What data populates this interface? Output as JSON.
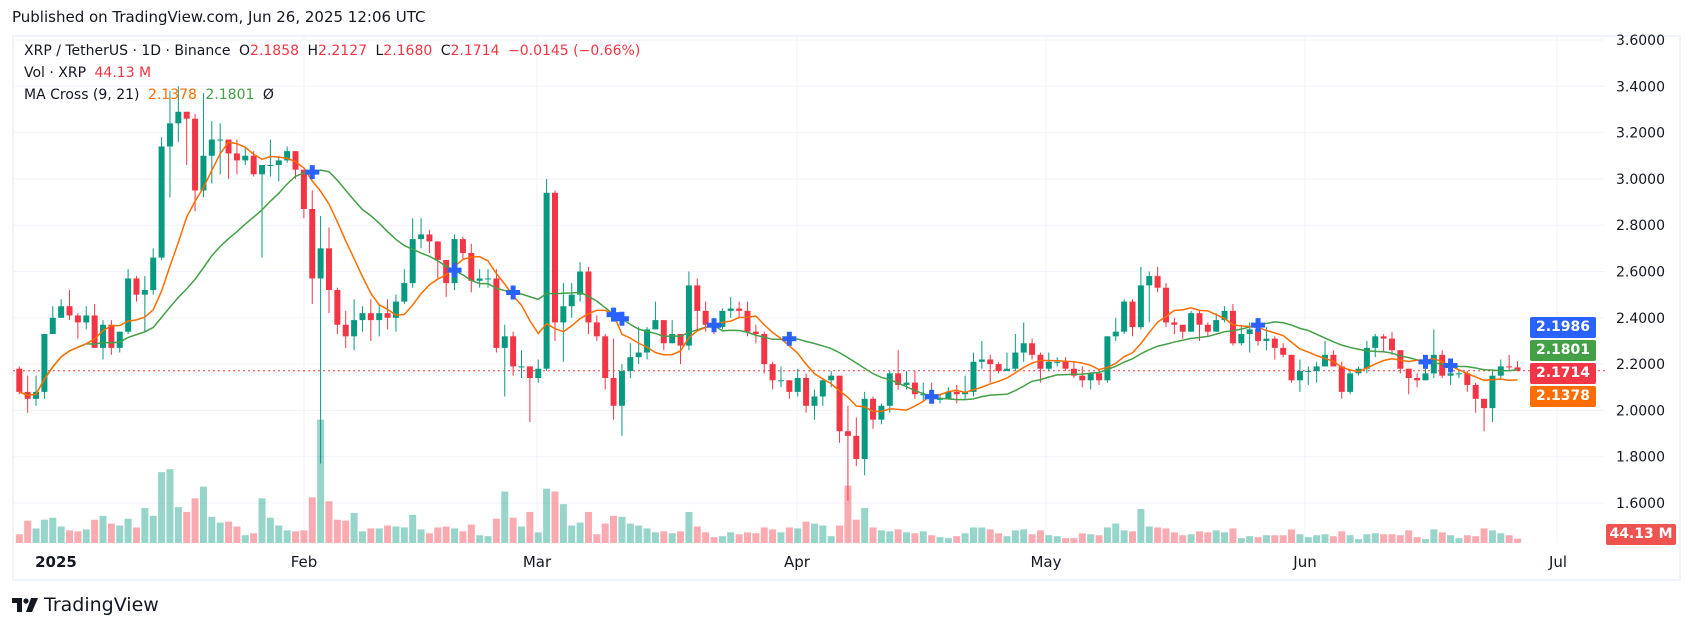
{
  "published": "Published on TradingView.com, Jun 26, 2025 12:06 UTC",
  "legend": {
    "symbol": "XRP / TetherUS · 1D · Binance",
    "o_label": "O",
    "o": "2.1858",
    "h_label": "H",
    "h": "2.2127",
    "l_label": "L",
    "l": "2.1680",
    "c_label": "C",
    "c": "2.1714",
    "change": "−0.0145 (−0.66%)",
    "vol_label": "Vol · XRP",
    "vol": "44.13 M",
    "ma_label": "MA Cross (9, 21)",
    "ma_fast": "2.1378",
    "ma_slow": "2.1801",
    "ma_extra": "Ø"
  },
  "price_labels": {
    "cross": "2.1986",
    "ma_slow": "2.1801",
    "last": "2.1714",
    "ma_fast": "2.1378",
    "volume": "44.13 M"
  },
  "time_axis": [
    "2025",
    "Feb",
    "Mar",
    "Apr",
    "May",
    "Jun",
    "Jul"
  ],
  "logo_text": "TradingView",
  "colors": {
    "up": "#089981",
    "down": "#F23645",
    "ma_fast": "#FF6D00",
    "ma_slow": "#43A047",
    "cross": "#2962FF"
  },
  "chart_data": {
    "type": "candlestick",
    "title": "XRP / TetherUS · 1D · Binance",
    "ylim": [
      1.6,
      3.6
    ],
    "yticks": [
      "3.6000",
      "3.4000",
      "3.2000",
      "3.0000",
      "2.8000",
      "2.6000",
      "2.4000",
      "2.2000",
      "2.0000",
      "1.8000",
      "1.6000"
    ],
    "first_open": 2.18,
    "close": [
      2.08,
      2.05,
      2.08,
      2.33,
      2.4,
      2.45,
      2.41,
      2.38,
      2.41,
      2.27,
      2.37,
      2.27,
      2.34,
      2.57,
      2.5,
      2.52,
      2.66,
      3.14,
      3.24,
      3.29,
      3.26,
      2.95,
      3.1,
      3.17,
      3.17,
      3.11,
      3.08,
      3.1,
      3.02,
      3.06,
      3.06,
      3.08,
      3.12,
      3.04,
      2.87,
      2.57,
      2.7,
      2.52,
      2.37,
      2.32,
      2.39,
      2.42,
      2.39,
      2.42,
      2.4,
      2.47,
      2.55,
      2.74,
      2.76,
      2.73,
      2.65,
      2.55,
      2.74,
      2.68,
      2.56,
      2.57,
      2.57,
      2.27,
      2.32,
      2.19,
      2.19,
      2.14,
      2.18,
      2.94,
      2.38,
      2.45,
      2.5,
      2.6,
      2.38,
      2.32,
      2.14,
      2.02,
      2.17,
      2.23,
      2.25,
      2.35,
      2.39,
      2.29,
      2.33,
      2.28,
      2.54,
      2.43,
      2.37,
      2.36,
      2.43,
      2.44,
      2.43,
      2.34,
      2.33,
      2.2,
      2.13,
      2.13,
      2.08,
      2.14,
      2.02,
      2.06,
      2.13,
      2.15,
      1.91,
      1.89,
      1.79,
      2.05,
      1.96,
      2.02,
      2.16,
      2.11,
      2.12,
      2.07,
      2.07,
      2.05,
      2.05,
      2.08,
      2.07,
      2.08,
      2.21,
      2.22,
      2.2,
      2.17,
      2.18,
      2.25,
      2.29,
      2.24,
      2.18,
      2.21,
      2.21,
      2.18,
      2.15,
      2.13,
      2.16,
      2.13,
      2.32,
      2.34,
      2.47,
      2.36,
      2.54,
      2.58,
      2.53,
      2.38,
      2.37,
      2.34,
      2.42,
      2.37,
      2.34,
      2.39,
      2.43,
      2.29,
      2.33,
      2.35,
      2.3,
      2.31,
      2.27,
      2.24,
      2.13,
      2.17,
      2.17,
      2.19,
      2.24,
      2.19,
      2.08,
      2.16,
      2.18,
      2.27,
      2.32,
      2.31,
      2.26,
      2.18,
      2.14,
      2.13,
      2.16,
      2.24,
      2.15,
      2.16,
      2.16,
      2.11,
      2.05,
      2.01,
      2.15,
      2.19,
      2.1858,
      2.1714
    ],
    "high": [
      2.19,
      2.15,
      2.15,
      2.33,
      2.45,
      2.48,
      2.52,
      2.42,
      2.45,
      2.46,
      2.39,
      2.39,
      2.34,
      2.61,
      2.58,
      2.58,
      2.7,
      3.18,
      3.38,
      3.4,
      3.29,
      3.28,
      3.37,
      3.25,
      3.24,
      3.17,
      3.17,
      3.14,
      3.12,
      3.06,
      3.17,
      3.1,
      3.14,
      3.12,
      3.04,
      2.95,
      2.84,
      2.79,
      2.53,
      2.43,
      2.48,
      2.45,
      2.48,
      2.46,
      2.48,
      2.5,
      2.61,
      2.83,
      2.83,
      2.78,
      2.73,
      2.63,
      2.76,
      2.75,
      2.72,
      2.61,
      2.61,
      2.61,
      2.37,
      2.34,
      2.26,
      2.19,
      2.22,
      3.0,
      2.95,
      2.55,
      2.55,
      2.64,
      2.62,
      2.41,
      2.33,
      2.31,
      2.2,
      2.29,
      2.36,
      2.36,
      2.47,
      2.39,
      2.39,
      2.33,
      2.6,
      2.57,
      2.47,
      2.4,
      2.44,
      2.49,
      2.47,
      2.47,
      2.37,
      2.34,
      2.21,
      2.19,
      2.13,
      2.18,
      2.16,
      2.09,
      2.14,
      2.17,
      2.15,
      2.02,
      1.97,
      2.08,
      2.06,
      2.03,
      2.17,
      2.26,
      2.17,
      2.17,
      2.12,
      2.12,
      2.07,
      2.1,
      2.11,
      2.15,
      2.25,
      2.3,
      2.24,
      2.21,
      2.25,
      2.33,
      2.38,
      2.31,
      2.25,
      2.25,
      2.23,
      2.23,
      2.21,
      2.19,
      2.16,
      2.16,
      2.32,
      2.4,
      2.48,
      2.48,
      2.62,
      2.6,
      2.62,
      2.55,
      2.4,
      2.36,
      2.43,
      2.43,
      2.38,
      2.42,
      2.45,
      2.46,
      2.37,
      2.38,
      2.37,
      2.36,
      2.32,
      2.29,
      2.24,
      2.22,
      2.19,
      2.21,
      2.3,
      2.26,
      2.21,
      2.18,
      2.19,
      2.3,
      2.33,
      2.33,
      2.34,
      2.26,
      2.18,
      2.16,
      2.18,
      2.35,
      2.26,
      2.18,
      2.18,
      2.17,
      2.12,
      2.05,
      2.17,
      2.22,
      2.24,
      2.2127
    ],
    "low": [
      2.07,
      1.99,
      2.02,
      2.05,
      2.33,
      2.4,
      2.39,
      2.31,
      2.35,
      2.27,
      2.22,
      2.24,
      2.25,
      2.33,
      2.47,
      2.34,
      2.5,
      2.65,
      2.92,
      3.16,
      3.06,
      2.86,
      2.92,
      2.98,
      3.02,
      3.0,
      3.02,
      3.06,
      3.01,
      2.66,
      3.01,
      2.99,
      3.07,
      3.0,
      2.83,
      2.46,
      1.77,
      2.42,
      2.33,
      2.27,
      2.26,
      2.34,
      2.3,
      2.32,
      2.35,
      2.34,
      2.46,
      2.53,
      2.7,
      2.68,
      2.57,
      2.49,
      2.52,
      2.65,
      2.51,
      2.53,
      2.53,
      2.25,
      2.06,
      2.15,
      2.14,
      1.95,
      2.12,
      2.17,
      2.3,
      2.21,
      2.4,
      2.47,
      2.33,
      2.3,
      2.09,
      1.96,
      1.89,
      2.14,
      2.2,
      2.22,
      2.35,
      2.26,
      2.29,
      2.2,
      2.26,
      2.34,
      2.34,
      2.33,
      2.35,
      2.4,
      2.4,
      2.32,
      2.29,
      2.16,
      2.09,
      2.1,
      2.05,
      2.06,
      1.99,
      1.96,
      2.02,
      2.1,
      1.86,
      1.61,
      1.76,
      1.72,
      1.92,
      1.94,
      1.99,
      2.09,
      2.09,
      2.05,
      2.04,
      2.04,
      2.03,
      2.05,
      2.03,
      2.05,
      2.06,
      2.18,
      2.12,
      2.16,
      2.17,
      2.17,
      2.21,
      2.22,
      2.12,
      2.17,
      2.19,
      2.17,
      2.14,
      2.1,
      2.09,
      2.11,
      2.12,
      2.3,
      2.33,
      2.32,
      2.35,
      2.38,
      2.51,
      2.36,
      2.33,
      2.31,
      2.34,
      2.3,
      2.32,
      2.34,
      2.38,
      2.28,
      2.28,
      2.25,
      2.28,
      2.26,
      2.22,
      2.23,
      2.12,
      2.08,
      2.11,
      2.12,
      2.19,
      2.19,
      2.05,
      2.07,
      2.15,
      2.16,
      2.23,
      2.25,
      2.24,
      2.16,
      2.07,
      2.1,
      2.13,
      2.14,
      2.14,
      2.11,
      2.14,
      2.08,
      1.99,
      1.91,
      1.95,
      2.13,
      2.17,
      2.168
    ],
    "volume_millions": [
      90,
      230,
      150,
      240,
      260,
      170,
      130,
      120,
      140,
      240,
      280,
      200,
      180,
      250,
      160,
      360,
      280,
      730,
      760,
      370,
      320,
      460,
      580,
      270,
      210,
      220,
      170,
      80,
      100,
      460,
      260,
      180,
      130,
      120,
      130,
      470,
      1270,
      430,
      240,
      230,
      310,
      120,
      150,
      150,
      180,
      170,
      160,
      290,
      140,
      100,
      160,
      170,
      150,
      120,
      190,
      80,
      70,
      250,
      530,
      260,
      170,
      320,
      110,
      560,
      530,
      400,
      180,
      210,
      320,
      90,
      200,
      280,
      270,
      200,
      180,
      150,
      110,
      120,
      100,
      120,
      320,
      170,
      110,
      60,
      70,
      110,
      90,
      110,
      100,
      160,
      140,
      110,
      160,
      150,
      220,
      200,
      180,
      70,
      180,
      590,
      240,
      360,
      160,
      130,
      120,
      140,
      110,
      100,
      120,
      80,
      60,
      50,
      70,
      100,
      160,
      160,
      140,
      100,
      70,
      130,
      140,
      90,
      130,
      80,
      70,
      50,
      50,
      100,
      90,
      80,
      160,
      200,
      130,
      120,
      350,
      170,
      160,
      150,
      110,
      80,
      90,
      120,
      110,
      130,
      110,
      150,
      50,
      70,
      60,
      80,
      80,
      80,
      140,
      90,
      60,
      80,
      90,
      70,
      120,
      80,
      40,
      90,
      100,
      90,
      90,
      80,
      130,
      60,
      40,
      140,
      110,
      80,
      50,
      80,
      70,
      150,
      130,
      100,
      80,
      44.13
    ],
    "ma_periods": [
      9,
      21
    ],
    "x_start": "2024-12-28",
    "x_end": "2025-06-26",
    "grid": true
  }
}
